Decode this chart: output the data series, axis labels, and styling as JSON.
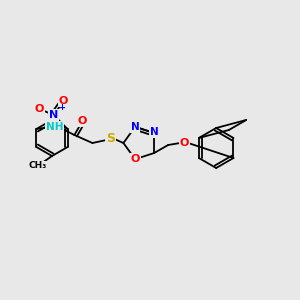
{
  "background_color": "#e8e8e8",
  "atom_colors": {
    "C": "#000000",
    "N": "#0000ff",
    "O": "#ff0000",
    "S": "#ccaa00",
    "H": "#00cccc"
  },
  "bond_lw": 1.3,
  "double_sep": 2.8,
  "figsize": [
    3.0,
    3.0
  ],
  "dpi": 100
}
